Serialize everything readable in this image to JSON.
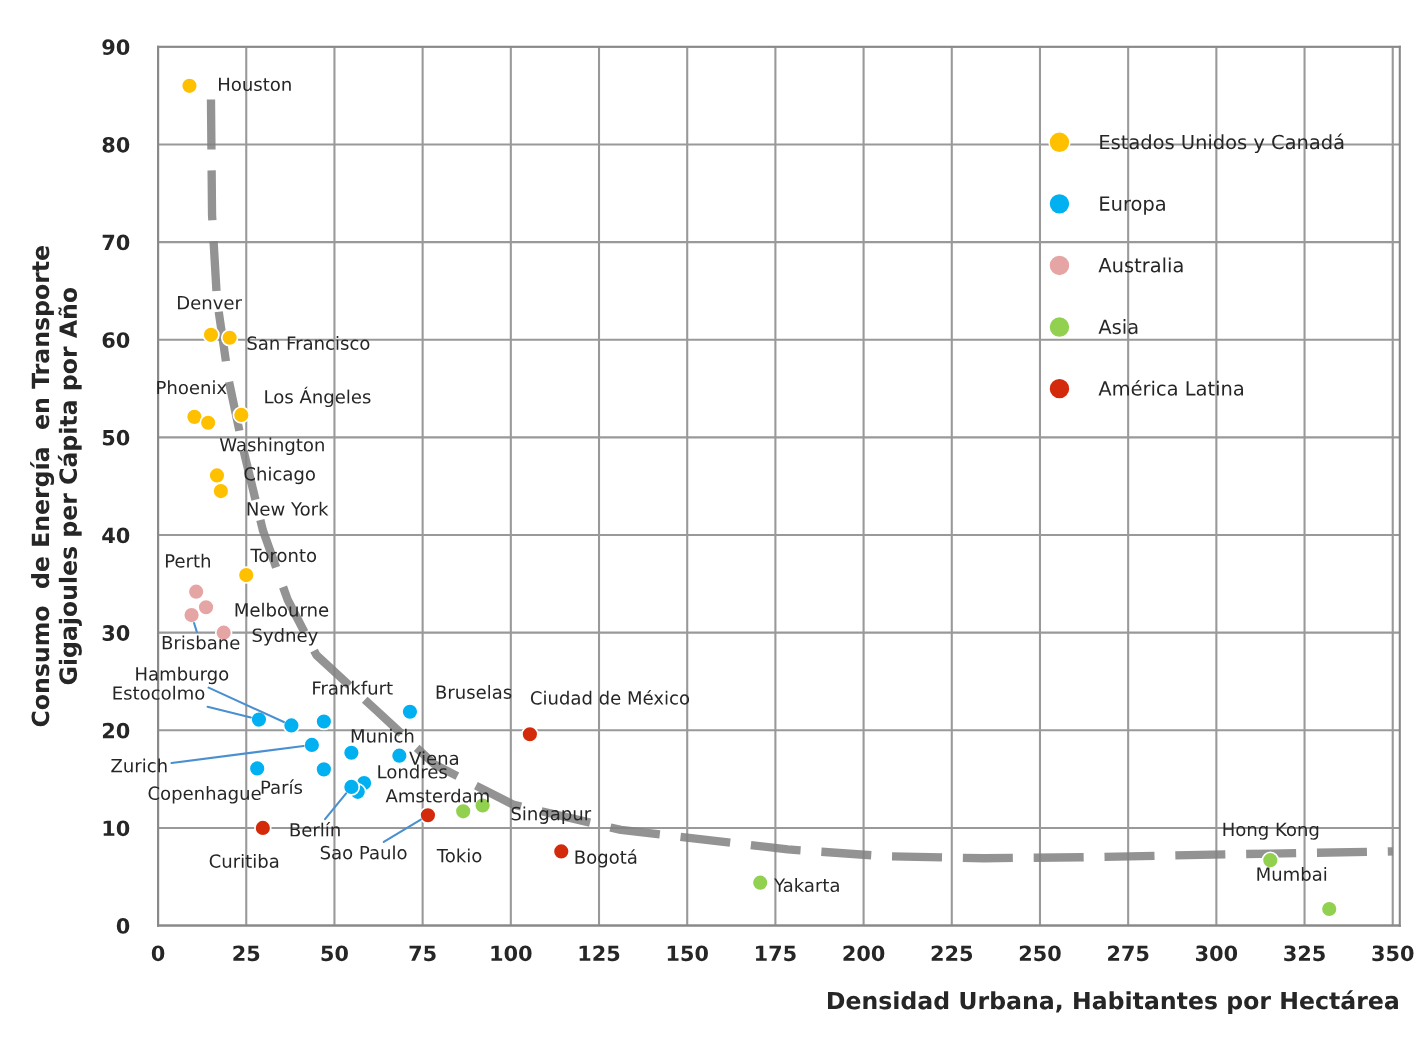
{
  "chart_data": {
    "type": "scatter",
    "xlabel": "Densidad Urbana, Habitantes por Hectárea",
    "ylabel": "Consumo  de Energía  en Transporte\nGigajoules per Cápita por Año",
    "xlim": [
      0,
      352
    ],
    "ylim": [
      0,
      90
    ],
    "xticks": [
      0,
      25,
      50,
      75,
      100,
      125,
      150,
      175,
      200,
      225,
      250,
      275,
      300,
      325,
      350
    ],
    "yticks": [
      0,
      10,
      20,
      30,
      40,
      50,
      60,
      70,
      80,
      90
    ],
    "grid": true,
    "legend": "right",
    "marker": "circle",
    "series": [
      {
        "name": "Estados Unidos y Canadá",
        "color": "#ffc000",
        "x": [
          8.9,
          15.0,
          20.3,
          10.3,
          14.2,
          23.6,
          16.7,
          17.8,
          25.0
        ],
        "values": [
          86.0,
          60.5,
          60.2,
          52.1,
          51.5,
          52.3,
          46.1,
          44.5,
          35.9
        ]
      },
      {
        "name": "Europa",
        "color": "#00b0f0",
        "x": [
          28.6,
          37.8,
          47.0,
          71.4,
          43.6,
          28.1,
          47.0,
          54.8,
          68.4,
          58.4,
          56.6,
          54.8
        ],
        "values": [
          21.1,
          20.5,
          20.9,
          21.9,
          18.5,
          16.1,
          16.0,
          17.7,
          17.4,
          14.6,
          13.7,
          14.2
        ]
      },
      {
        "name": "Australia",
        "color": "#e6a5a5",
        "x": [
          10.8,
          13.6,
          9.5,
          18.6
        ],
        "values": [
          34.2,
          32.6,
          31.8,
          30.0
        ]
      },
      {
        "name": "Asia",
        "color": "#92d050",
        "x": [
          86.5,
          92.0,
          170.7,
          315.3,
          332.0
        ],
        "values": [
          11.7,
          12.3,
          4.4,
          6.7,
          1.7
        ]
      },
      {
        "name": "América Latina",
        "color": "#d42a0c",
        "x": [
          76.5,
          29.7,
          105.4,
          114.3
        ],
        "values": [
          11.3,
          10.0,
          19.6,
          7.6
        ]
      },
      {
        "type": "line",
        "color": "#808080",
        "line_style": "dashed",
        "marker": "none",
        "x": [
          15.0,
          15.3,
          16.7,
          20.0,
          24.2,
          29.7,
          36.7,
          44.9,
          61.7,
          78.4,
          100.6,
          131.2,
          178.5,
          206.3,
          234.1,
          261.9,
          303.6,
          350.0
        ],
        "values": [
          84.6,
          72.8,
          64.1,
          55.9,
          48.7,
          40.5,
          33.4,
          27.7,
          22.1,
          16.5,
          12.4,
          9.8,
          7.8,
          7.1,
          6.9,
          7.0,
          7.3,
          7.6
        ]
      }
    ],
    "annotations": [
      {
        "text": "Houston",
        "x": 8.9,
        "y": 86.0
      },
      {
        "text": "Denver",
        "x": 15.0,
        "y": 60.5
      },
      {
        "text": "San Francisco",
        "x": 20.3,
        "y": 60.2
      },
      {
        "text": "Phoenix",
        "x": 10.3,
        "y": 52.1
      },
      {
        "text": "Washington",
        "x": 14.2,
        "y": 51.5
      },
      {
        "text": "Los Ángeles",
        "x": 23.6,
        "y": 52.3
      },
      {
        "text": "Chicago",
        "x": 16.7,
        "y": 46.1
      },
      {
        "text": "New York",
        "x": 17.8,
        "y": 44.5
      },
      {
        "text": "Toronto",
        "x": 25.0,
        "y": 35.9
      },
      {
        "text": "Perth",
        "x": 10.8,
        "y": 34.2
      },
      {
        "text": "Melbourne",
        "x": 13.6,
        "y": 32.6
      },
      {
        "text": "Brisbane",
        "x": 9.5,
        "y": 31.8
      },
      {
        "text": "Sydney",
        "x": 18.6,
        "y": 30.0
      },
      {
        "text": "Estocolmo",
        "x": 28.6,
        "y": 21.1
      },
      {
        "text": "Hamburgo",
        "x": 37.8,
        "y": 20.5
      },
      {
        "text": "Frankfurt",
        "x": 47.0,
        "y": 20.9
      },
      {
        "text": "Bruselas",
        "x": 71.4,
        "y": 21.9
      },
      {
        "text": "Zurich",
        "x": 43.6,
        "y": 18.5
      },
      {
        "text": "Copenhague",
        "x": 28.1,
        "y": 16.1
      },
      {
        "text": "París",
        "x": 47.0,
        "y": 16.0
      },
      {
        "text": "Munich",
        "x": 54.8,
        "y": 17.7
      },
      {
        "text": "Viena",
        "x": 68.4,
        "y": 17.4
      },
      {
        "text": "Londres",
        "x": 58.4,
        "y": 14.6
      },
      {
        "text": "Amsterdam",
        "x": 56.6,
        "y": 13.7
      },
      {
        "text": "Berlín",
        "x": 54.8,
        "y": 14.2
      },
      {
        "text": "Sao Paulo",
        "x": 76.5,
        "y": 11.3
      },
      {
        "text": "Curitiba",
        "x": 29.7,
        "y": 10.0
      },
      {
        "text": "Ciudad de México",
        "x": 105.4,
        "y": 19.6
      },
      {
        "text": "Bogotá",
        "x": 114.3,
        "y": 7.6
      },
      {
        "text": "Tokio",
        "x": 86.5,
        "y": 11.7
      },
      {
        "text": "Singapur",
        "x": 92.0,
        "y": 12.3
      },
      {
        "text": "Yakarta",
        "x": 170.7,
        "y": 4.4
      },
      {
        "text": "Hong Kong",
        "x": 315.3,
        "y": 6.7
      },
      {
        "text": "Mumbai",
        "x": 332.0,
        "y": 1.7
      }
    ]
  }
}
